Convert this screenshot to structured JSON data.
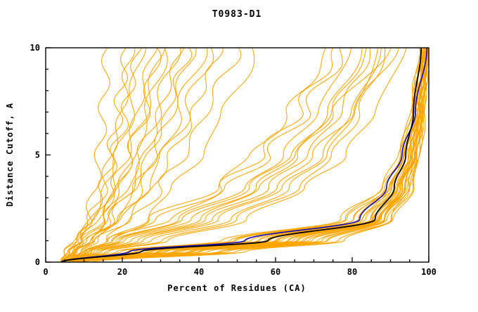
{
  "title": "T0983-D1",
  "axes": {
    "xlabel": "Percent of Residues (CA)",
    "ylabel": "Distance Cutoff, A",
    "xlim": [
      0,
      100
    ],
    "ylim": [
      0,
      10
    ],
    "x_major_ticks": [
      0,
      20,
      40,
      60,
      80,
      100
    ],
    "x_minor_step": 5,
    "y_major_ticks": [
      0,
      5,
      10
    ],
    "y_minor_step": 1
  },
  "colors": {
    "ensemble": "#FFA500",
    "reference_blue": "#0000CD",
    "best_black": "#000000",
    "frame": "#000000",
    "background": "#FFFFFF"
  },
  "chart_data": {
    "type": "line",
    "title": "T0983-D1",
    "xlabel": "Percent of Residues (CA)",
    "ylabel": "Distance Cutoff, A",
    "xlim": [
      0,
      100
    ],
    "ylim": [
      0,
      10
    ],
    "y_levels": [
      0,
      0.5,
      1,
      2,
      3.5,
      5,
      7,
      10
    ],
    "series": [
      {
        "name": "black-model-curve",
        "color": "#000000",
        "width": 1.8,
        "x_at_y": [
          4,
          25,
          58,
          86,
          91,
          94,
          96,
          98
        ]
      },
      {
        "name": "blue-model-curve",
        "color": "#0000CD",
        "width": 1.5,
        "x_at_y": [
          4,
          22,
          52,
          82,
          89,
          93,
          96.5,
          99.5
        ]
      }
    ],
    "ensemble": {
      "name": "orange-model-curves",
      "color": "#FFA500",
      "width": 1.05,
      "curves": [
        [
          6,
          30,
          60,
          85,
          92,
          95,
          97,
          99
        ],
        [
          7,
          35,
          65,
          87,
          93,
          96,
          98,
          99.5
        ],
        [
          5,
          25,
          55,
          82,
          90,
          94,
          96,
          98.5
        ],
        [
          8,
          40,
          70,
          88,
          94,
          96.5,
          98,
          99.5
        ],
        [
          6,
          28,
          58,
          84,
          91,
          95,
          97,
          99
        ],
        [
          9,
          45,
          72,
          89,
          94.5,
          97,
          98.5,
          99.8
        ],
        [
          5,
          22,
          50,
          80,
          89,
          93,
          96,
          98
        ],
        [
          7,
          33,
          63,
          86,
          92.5,
          95.5,
          97.5,
          99.2
        ],
        [
          10,
          48,
          74,
          90,
          95,
          97.3,
          98.6,
          99.9
        ],
        [
          6,
          27,
          57,
          83,
          90.5,
          94.5,
          96.8,
          98.8
        ],
        [
          8,
          38,
          68,
          87.5,
          93.5,
          96.2,
          98,
          99.4
        ],
        [
          5,
          20,
          48,
          78,
          88,
          92.5,
          95.5,
          97.8
        ],
        [
          7,
          31,
          61,
          85.5,
          92,
          95.2,
          97.2,
          99.1
        ],
        [
          9,
          43,
          71,
          88.5,
          94,
          96.8,
          98.3,
          99.7
        ],
        [
          6,
          26,
          56,
          82.5,
          90,
          94,
          96.5,
          98.6
        ],
        [
          8,
          36,
          66,
          87,
          93,
          96,
          97.8,
          99.3
        ],
        [
          5,
          23,
          52,
          80.5,
          89.5,
          93.5,
          96.2,
          98.3
        ],
        [
          7,
          34,
          64,
          86.5,
          92.8,
          95.8,
          97.6,
          99.2
        ],
        [
          10,
          50,
          76,
          90.5,
          95.5,
          97.6,
          98.8,
          100
        ],
        [
          6,
          29,
          59,
          84.5,
          91.5,
          95,
          97,
          99
        ],
        [
          8,
          41,
          69,
          88,
          94,
          96.5,
          98.1,
          99.5
        ],
        [
          5,
          21,
          49,
          79,
          88.5,
          93,
          95.8,
          98
        ],
        [
          7,
          32,
          62,
          86,
          92.3,
          95.5,
          97.4,
          99.1
        ],
        [
          9,
          46,
          73,
          89.5,
          94.8,
          97.2,
          98.5,
          99.8
        ],
        [
          6,
          24,
          54,
          81.5,
          89.8,
          93.8,
          96.4,
          98.5
        ],
        [
          8,
          39,
          67,
          87.2,
          93.2,
          96.1,
          97.9,
          99.3
        ],
        [
          12,
          52,
          78,
          91,
          95.8,
          97.8,
          99,
          100
        ],
        [
          6,
          30,
          60,
          85,
          91.8,
          95.3,
          97.3,
          99
        ],
        [
          7,
          37,
          66,
          87,
          93.4,
          96.3,
          98,
          99.4
        ],
        [
          5,
          19,
          46,
          77,
          87.5,
          92,
          95.2,
          97.6
        ],
        [
          6,
          14,
          25,
          45,
          62,
          72,
          80,
          88
        ],
        [
          5,
          12,
          20,
          38,
          55,
          65,
          74,
          83
        ],
        [
          7,
          16,
          30,
          50,
          66,
          75,
          82,
          89
        ],
        [
          5,
          10,
          17,
          32,
          48,
          58,
          68,
          78
        ],
        [
          6,
          13,
          22,
          42,
          58,
          68,
          77,
          85
        ],
        [
          5,
          11,
          18,
          35,
          52,
          62,
          71,
          80
        ],
        [
          7,
          15,
          28,
          48,
          64,
          73,
          81,
          87
        ],
        [
          5,
          9,
          15,
          28,
          44,
          54,
          64,
          74
        ],
        [
          6,
          12,
          21,
          40,
          56,
          66,
          75,
          84
        ],
        [
          5,
          10,
          16,
          30,
          46,
          56,
          66,
          76
        ],
        [
          6,
          13,
          24,
          44,
          60,
          70,
          80,
          92
        ],
        [
          7,
          17,
          32,
          52,
          68,
          78,
          86,
          94
        ],
        [
          5,
          11,
          19,
          36,
          53,
          64,
          75,
          90
        ],
        [
          4,
          6,
          8,
          11,
          13,
          14,
          15,
          16
        ],
        [
          5,
          7,
          9,
          12,
          15,
          17,
          19,
          21
        ],
        [
          4,
          6,
          9,
          13,
          17,
          19,
          22,
          25
        ],
        [
          5,
          8,
          11,
          15,
          19,
          22,
          26,
          30
        ],
        [
          4,
          7,
          10,
          14,
          18,
          21,
          24,
          28
        ],
        [
          5,
          8,
          12,
          17,
          22,
          26,
          30,
          35
        ],
        [
          4,
          6,
          9,
          12,
          16,
          18,
          21,
          24
        ],
        [
          5,
          9,
          13,
          19,
          25,
          30,
          35,
          41
        ],
        [
          4,
          7,
          11,
          16,
          21,
          25,
          29,
          34
        ],
        [
          5,
          8,
          12,
          18,
          24,
          28,
          33,
          38
        ],
        [
          4,
          6,
          8,
          12,
          15,
          17,
          20,
          22
        ],
        [
          5,
          9,
          14,
          21,
          28,
          33,
          39,
          45
        ],
        [
          4,
          7,
          10,
          15,
          20,
          23,
          27,
          31
        ],
        [
          5,
          8,
          13,
          20,
          26,
          31,
          37,
          43
        ],
        [
          4,
          6,
          9,
          14,
          19,
          22,
          26,
          29
        ],
        [
          5,
          10,
          15,
          23,
          30,
          36,
          42,
          50
        ],
        [
          4,
          7,
          11,
          17,
          23,
          27,
          32,
          37
        ],
        [
          6,
          11,
          17,
          26,
          34,
          40,
          47,
          55
        ]
      ]
    }
  }
}
